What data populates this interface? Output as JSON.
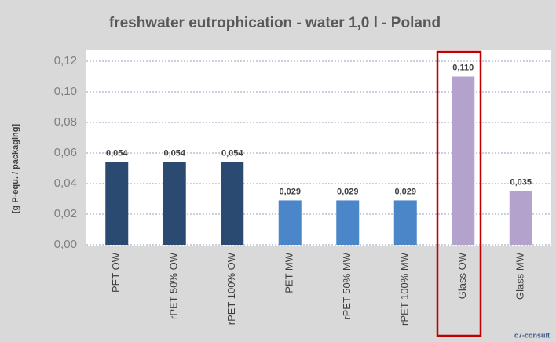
{
  "chart_data": {
    "type": "bar",
    "title": "freshwater eutrophication - water 1,0 l - Poland",
    "y_label": "[g P-equ. / packaging]",
    "source": "c7-consult",
    "categories": [
      "PET OW",
      "rPET 50% OW",
      "rPET 100% OW",
      "PET MW",
      "rPET 50% MW",
      "rPET 100% MW",
      "Glass OW",
      "Glass MW"
    ],
    "values": [
      0.054,
      0.054,
      0.054,
      0.029,
      0.029,
      0.029,
      0.11,
      0.035
    ],
    "value_labels": [
      "0,054",
      "0,054",
      "0,054",
      "0,029",
      "0,029",
      "0,029",
      "0,110",
      "0,035"
    ],
    "colors": [
      "#2b4a72",
      "#2b4a72",
      "#2b4a72",
      "#4a86c8",
      "#4a86c8",
      "#4a86c8",
      "#b3a2cc",
      "#b3a2cc"
    ],
    "ylim": [
      0,
      0.12
    ],
    "yticks": [
      {
        "value": 0,
        "label": "0,00"
      },
      {
        "value": 0.02,
        "label": "0,02"
      },
      {
        "value": 0.04,
        "label": "0,04"
      },
      {
        "value": 0.06,
        "label": "0,06"
      },
      {
        "value": 0.08,
        "label": "0,08"
      },
      {
        "value": 0.1,
        "label": "0,10"
      },
      {
        "value": 0.12,
        "label": "0,12"
      }
    ],
    "grid": true
  }
}
